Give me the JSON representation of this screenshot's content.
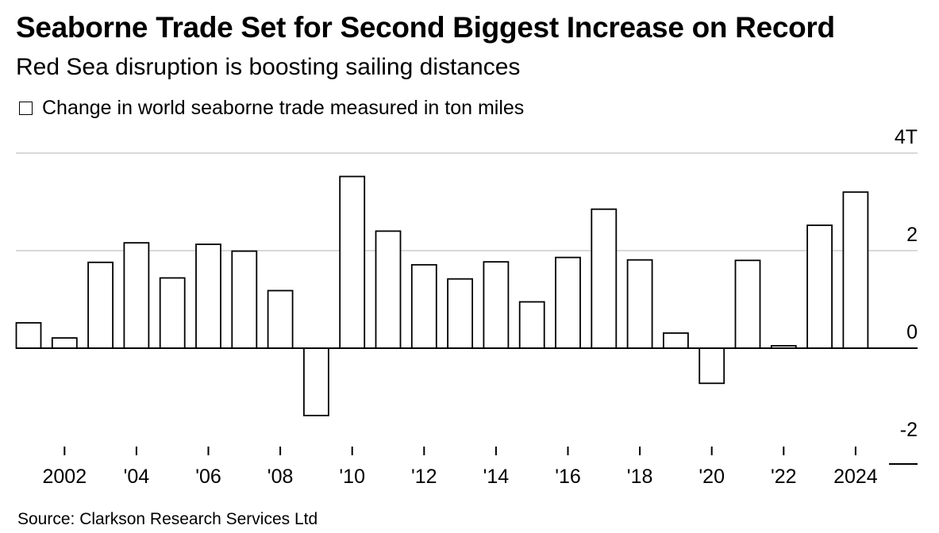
{
  "title": "Seaborne Trade Set for Second Biggest Increase on Record",
  "subtitle": "Red Sea disruption is boosting sailing distances",
  "legend": {
    "label": "Change in world seaborne trade measured in ton miles"
  },
  "source": "Source: Clarkson Research Services Ltd",
  "colors": {
    "bar_fill": "#ffffff",
    "bar_stroke": "#000000",
    "grid": "#d9d9d9",
    "axis": "#000000"
  },
  "chart_data": {
    "type": "bar",
    "categories": [
      "2001",
      "2002",
      "2003",
      "2004",
      "2005",
      "2006",
      "2007",
      "2008",
      "2009",
      "2010",
      "2011",
      "2012",
      "2013",
      "2014",
      "2015",
      "2016",
      "2017",
      "2018",
      "2019",
      "2020",
      "2021",
      "2022",
      "2023",
      "2024"
    ],
    "x_tick_values": [
      "2002",
      "2004",
      "2006",
      "2008",
      "2010",
      "2012",
      "2014",
      "2016",
      "2018",
      "2020",
      "2022",
      "2024"
    ],
    "x_tick_labels": [
      "2002",
      "'04",
      "'06",
      "'08",
      "'10",
      "'12",
      "'14",
      "'16",
      "'18",
      "'20",
      "'22",
      "2024"
    ],
    "series": [
      {
        "values": [
          0.52,
          0.21,
          1.76,
          2.16,
          1.44,
          2.13,
          1.99,
          1.18,
          -1.38,
          3.52,
          2.4,
          1.71,
          1.42,
          1.77,
          0.95,
          1.86,
          2.85,
          1.81,
          0.31,
          -0.72,
          1.8,
          0.05,
          2.52,
          3.2
        ]
      }
    ],
    "y_ticks": [
      4,
      2,
      0,
      -2
    ],
    "y_tick_labels": [
      "4T",
      "2",
      "0",
      "-2"
    ],
    "ylim": [
      -2,
      4
    ],
    "grid": true,
    "y_axis_position": "right"
  }
}
